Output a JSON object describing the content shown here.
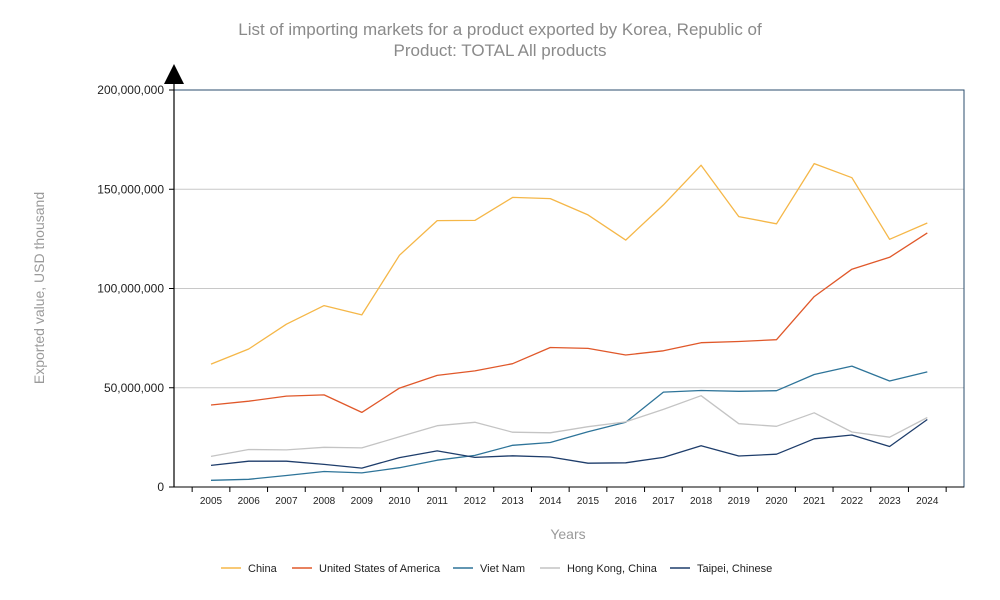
{
  "chart_data": {
    "type": "line",
    "title": "List of importing markets for a product exported by Korea, Republic of",
    "subtitle": "Product: TOTAL All products",
    "xlabel": "Years",
    "ylabel": "Exported value, USD thousand",
    "x": [
      2005,
      2006,
      2007,
      2008,
      2009,
      2010,
      2011,
      2012,
      2013,
      2014,
      2015,
      2016,
      2017,
      2018,
      2019,
      2020,
      2021,
      2022,
      2023,
      2024
    ],
    "y_ticks": [
      0,
      50000000,
      100000000,
      150000000,
      200000000
    ],
    "y_tick_labels": [
      "0",
      "50,000,000",
      "100,000,000",
      "150,000,000",
      "200,000,000"
    ],
    "ylim": [
      0,
      200000000
    ],
    "grid": true,
    "legend_position": "bottom",
    "series": [
      {
        "name": "China",
        "color": "#f5b748",
        "values": [
          61900000,
          69500000,
          82000000,
          91400000,
          86700000,
          116800000,
          134200000,
          134300000,
          145900000,
          145300000,
          137100000,
          124400000,
          142100000,
          162100000,
          136200000,
          132600000,
          162900000,
          155800000,
          124800000,
          133000000
        ]
      },
      {
        "name": "United States of America",
        "color": "#e0582a",
        "values": [
          41300000,
          43200000,
          45800000,
          46400000,
          37600000,
          49800000,
          56200000,
          58500000,
          62100000,
          70300000,
          69800000,
          66500000,
          68600000,
          72700000,
          73300000,
          74200000,
          95900000,
          109700000,
          115700000,
          128000000
        ]
      },
      {
        "name": "Viet Nam",
        "color": "#2e7499",
        "values": [
          3400000,
          3900000,
          5800000,
          7800000,
          7100000,
          9700000,
          13500000,
          15900000,
          21000000,
          22400000,
          27800000,
          32600000,
          47800000,
          48600000,
          48200000,
          48500000,
          56700000,
          60900000,
          53400000,
          58000000
        ]
      },
      {
        "name": "Hong Kong, China",
        "color": "#c4c4c4",
        "values": [
          15400000,
          18900000,
          18700000,
          20000000,
          19700000,
          25300000,
          30900000,
          32600000,
          27600000,
          27300000,
          30400000,
          32800000,
          39100000,
          46000000,
          31900000,
          30600000,
          37400000,
          27700000,
          25100000,
          35000000
        ]
      },
      {
        "name": "Taipei, Chinese",
        "color": "#1e3d6b",
        "values": [
          10900000,
          13000000,
          13000000,
          11400000,
          9500000,
          14800000,
          18200000,
          14900000,
          15700000,
          15100000,
          12000000,
          12200000,
          14900000,
          20800000,
          15600000,
          16500000,
          24300000,
          26200000,
          20400000,
          34000000
        ]
      }
    ]
  }
}
